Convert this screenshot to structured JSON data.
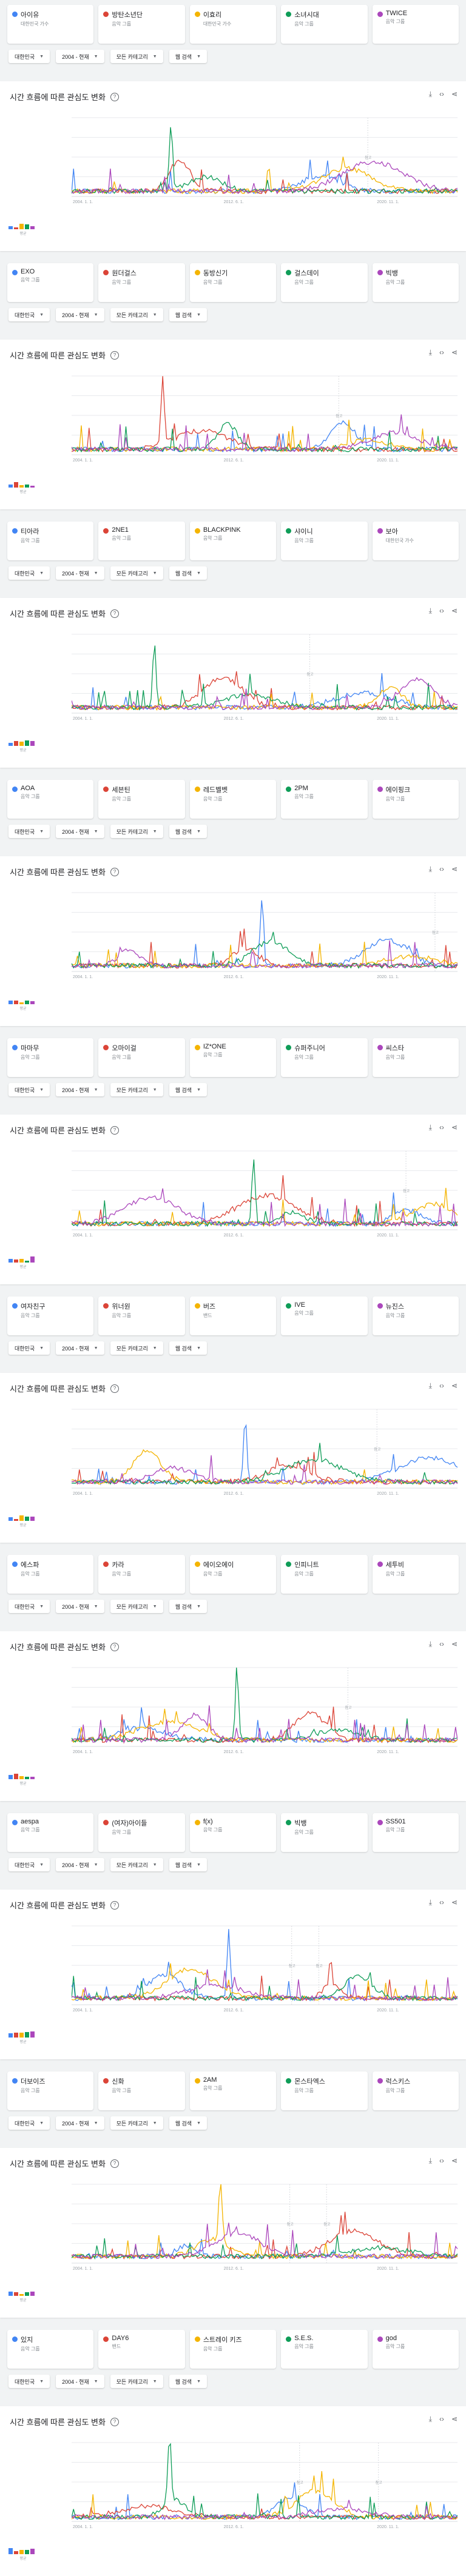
{
  "filters": {
    "region": "대한민국",
    "period": "2004 - 현재",
    "category": "모든 카테고리",
    "search_type": "웹 검색"
  },
  "panel_title": "시간 흐름에 따른 관심도 변화",
  "icons": {
    "download": "download-icon",
    "embed": "embed-icon",
    "share": "share-icon",
    "help": "help-icon",
    "caret": "chevron-down-icon"
  },
  "colors": [
    "#4285f4",
    "#db4437",
    "#f4b400",
    "#0f9d58",
    "#ab47bc"
  ],
  "chart_labels": {
    "y_ticks": [
      "100",
      "75",
      "50",
      "25"
    ],
    "x_ticks": [
      "2004. 1. 1.",
      "2012. 6. 1.",
      "2020. 11. 1."
    ],
    "note": "참고"
  },
  "legend_label": "평균",
  "term_groups": [
    [
      {
        "name": "아이유",
        "type": "대한민국 가수"
      },
      {
        "name": "방탄소년단",
        "type": "음악 그룹"
      },
      {
        "name": "이효리",
        "type": "대한민국 가수"
      },
      {
        "name": "소녀시대",
        "type": "음악 그룹"
      },
      {
        "name": "TWICE",
        "type": "음악 그룹"
      }
    ],
    [
      {
        "name": "EXO",
        "type": "음악 그룹"
      },
      {
        "name": "원더걸스",
        "type": "음악 그룹"
      },
      {
        "name": "동방신기",
        "type": "음악 그룹"
      },
      {
        "name": "걸스데이",
        "type": "음악 그룹"
      },
      {
        "name": "빅뱅",
        "type": "음악 그룹"
      }
    ],
    [
      {
        "name": "티아라",
        "type": "음악 그룹"
      },
      {
        "name": "2NE1",
        "type": "음악 그룹"
      },
      {
        "name": "BLACKPINK",
        "type": "음악 그룹"
      },
      {
        "name": "샤이니",
        "type": "음악 그룹"
      },
      {
        "name": "보아",
        "type": "대한민국 가수"
      }
    ],
    [
      {
        "name": "AOA",
        "type": "음악 그룹"
      },
      {
        "name": "세븐틴",
        "type": "음악 그룹"
      },
      {
        "name": "레드벨벳",
        "type": "음악 그룹"
      },
      {
        "name": "2PM",
        "type": "음악 그룹"
      },
      {
        "name": "에이핑크",
        "type": "음악 그룹"
      }
    ],
    [
      {
        "name": "마마무",
        "type": "음악 그룹"
      },
      {
        "name": "오마이걸",
        "type": "음악 그룹"
      },
      {
        "name": "IZ*ONE",
        "type": "음악 그룹"
      },
      {
        "name": "슈퍼주니어",
        "type": "음악 그룹"
      },
      {
        "name": "씨스타",
        "type": "음악 그룹"
      }
    ],
    [
      {
        "name": "여자친구",
        "type": "음악 그룹"
      },
      {
        "name": "위너원",
        "type": "음악 그룹"
      },
      {
        "name": "버즈",
        "type": "밴드"
      },
      {
        "name": "IVE",
        "type": "음악 그룹"
      },
      {
        "name": "뉴진스",
        "type": "음악 그룹"
      }
    ],
    [
      {
        "name": "에스파",
        "type": "음악 그룹"
      },
      {
        "name": "카라",
        "type": "음악 그룹"
      },
      {
        "name": "에이오에이",
        "type": "음악 그룹"
      },
      {
        "name": "인피니트",
        "type": "음악 그룹"
      },
      {
        "name": "세투비",
        "type": "음악 그룹"
      }
    ],
    [
      {
        "name": "aespa",
        "type": "음악 그룹"
      },
      {
        "name": "(여자)아이들",
        "type": "음악 그룹"
      },
      {
        "name": "f(x)",
        "type": "음악 그룹"
      },
      {
        "name": "빅뱅",
        "type": "음악 그룹"
      },
      {
        "name": "SS501",
        "type": "음악 그룹"
      }
    ],
    [
      {
        "name": "더보이즈",
        "type": "음악 그룹"
      },
      {
        "name": "신화",
        "type": "음악 그룹"
      },
      {
        "name": "2AM",
        "type": "음악 그룹"
      },
      {
        "name": "몬스타엑스",
        "type": "음악 그룹"
      },
      {
        "name": "럭스키스",
        "type": "음악 그룹"
      }
    ],
    [
      {
        "name": "있지",
        "type": "음악 그룹"
      },
      {
        "name": "DAY6",
        "type": "밴드"
      },
      {
        "name": "스트레이 키즈",
        "type": "음악 그룹"
      },
      {
        "name": "S.E.S.",
        "type": "음악 그룹"
      },
      {
        "name": "god",
        "type": "음악 그룹"
      }
    ]
  ]
}
